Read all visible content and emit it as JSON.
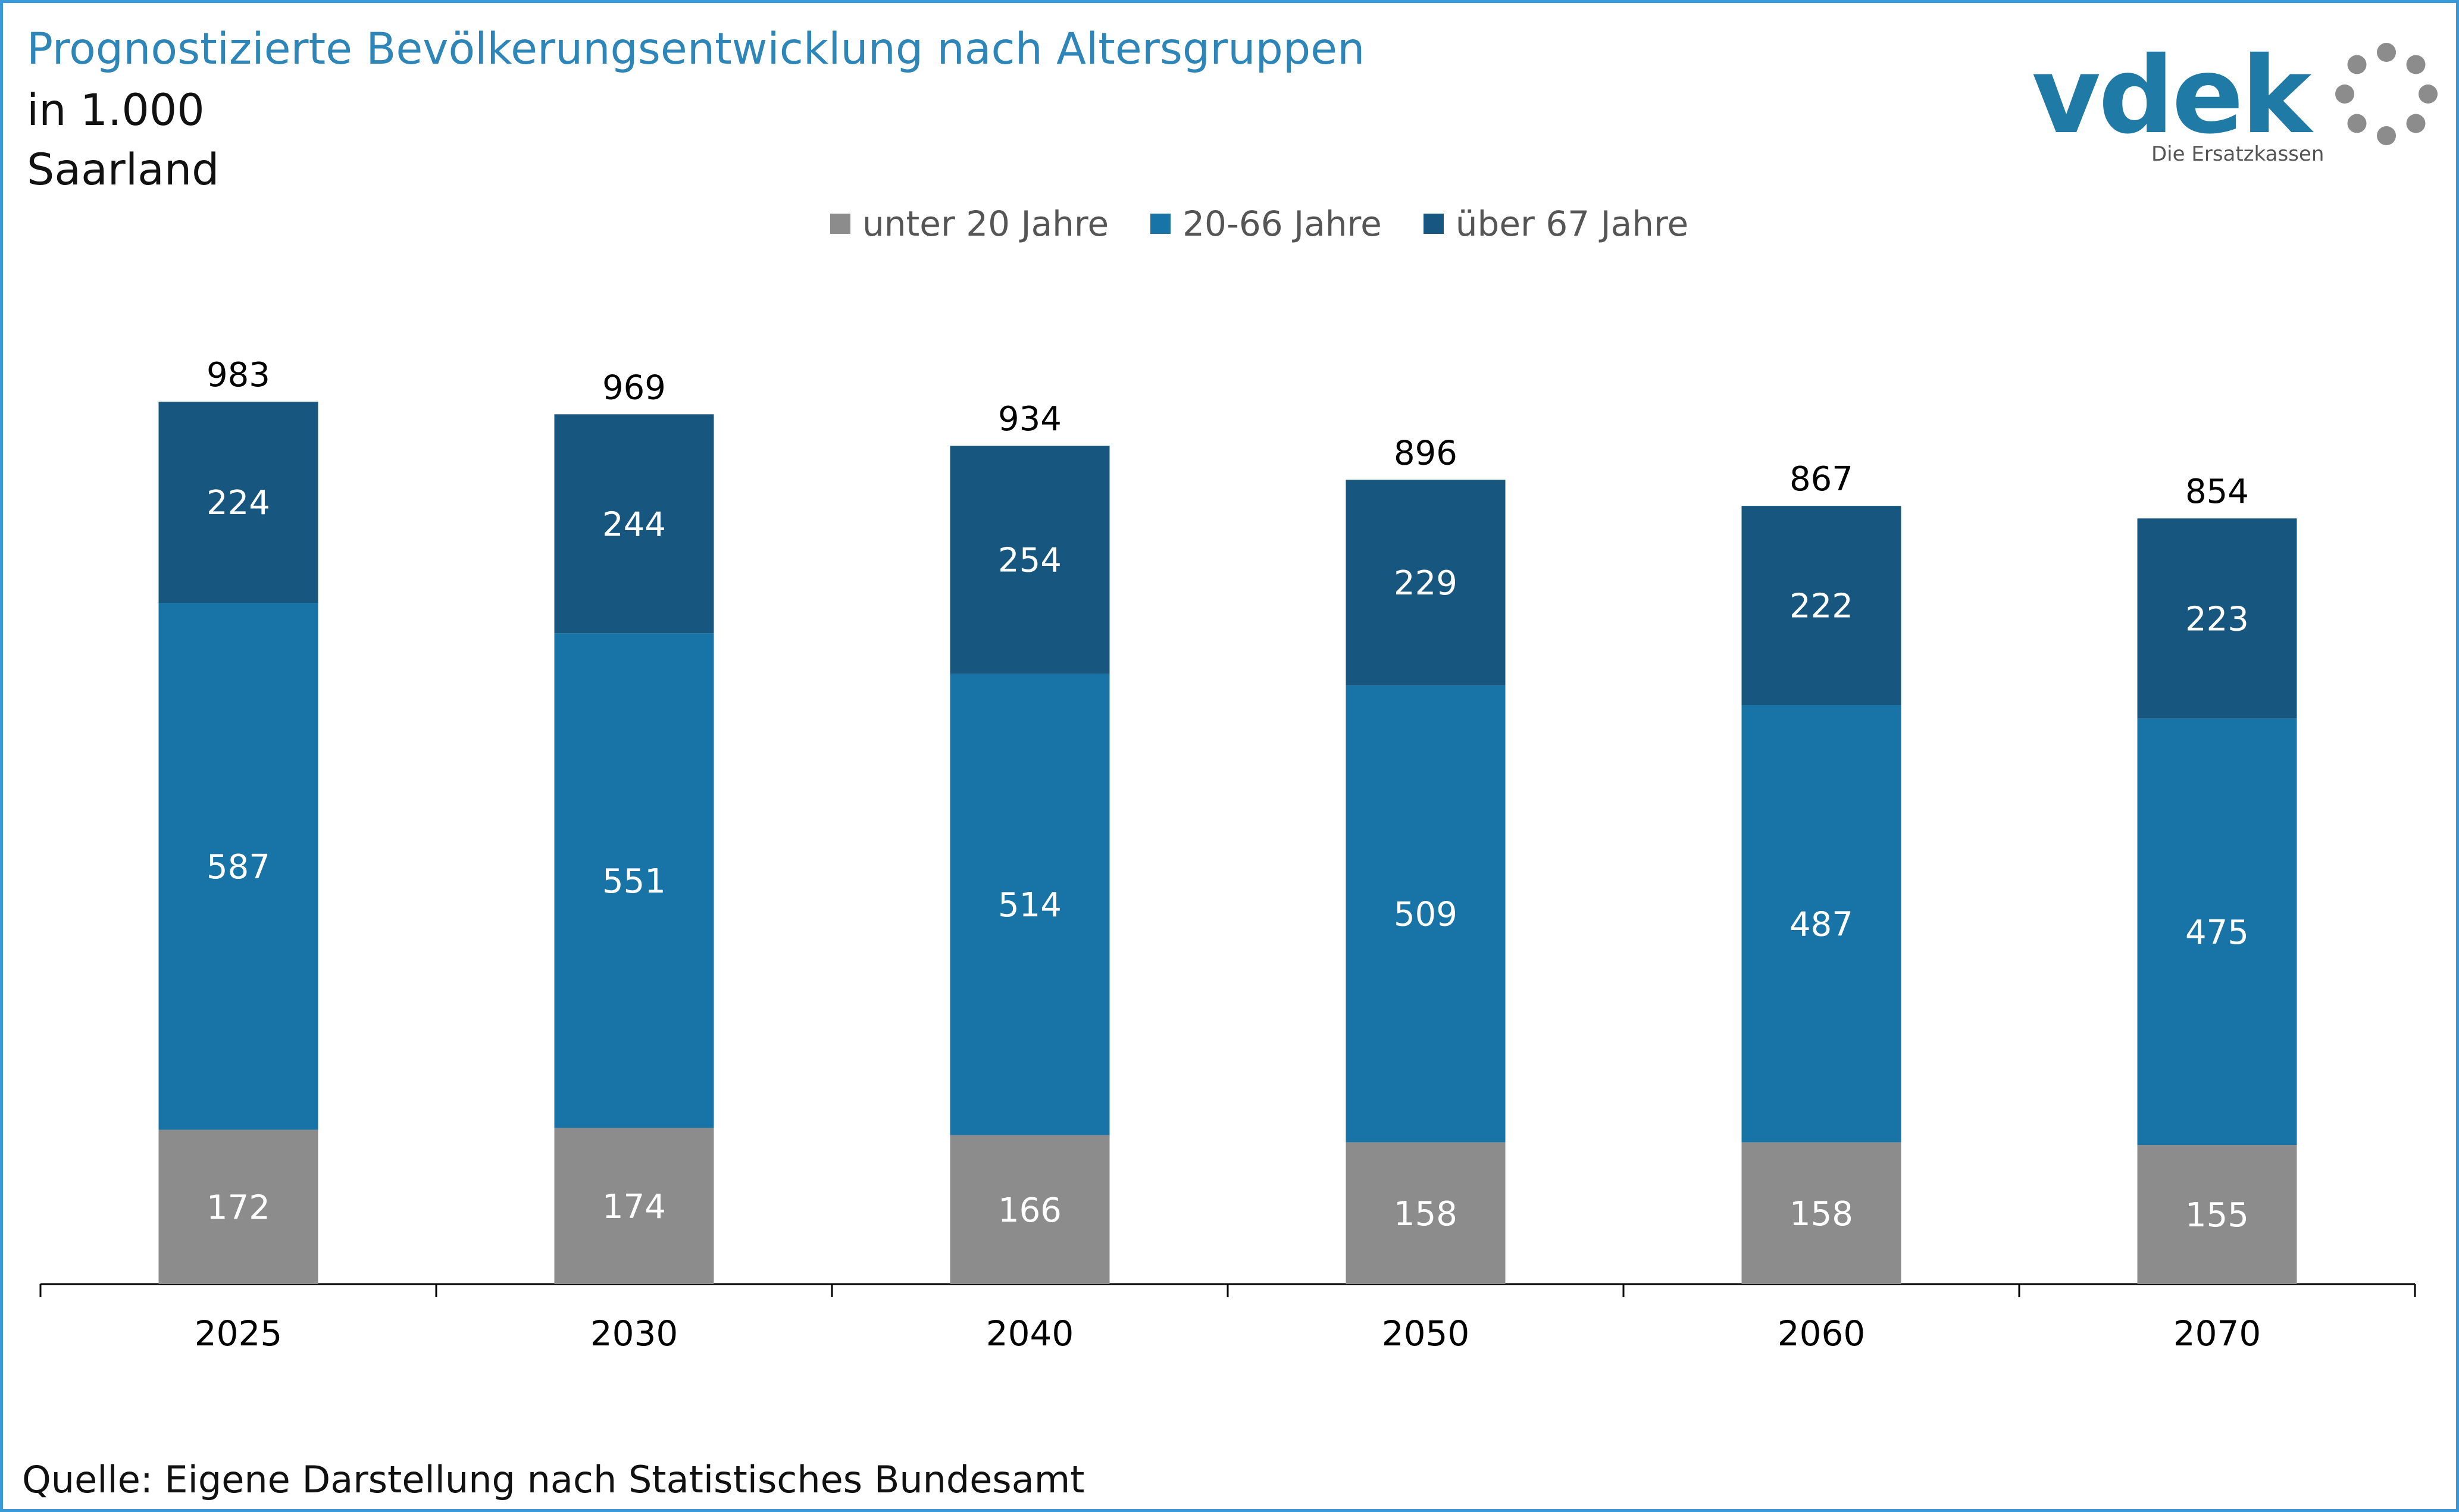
{
  "header": {
    "title": "Prognostizierte Bevölkerungsentwicklung nach Altersgruppen",
    "subtitle_unit": "in 1.000",
    "subtitle_region": "Saarland"
  },
  "logo": {
    "wordmark": "vdek",
    "tagline": "Die Ersatzkassen",
    "colors": {
      "wordmark": "#1f7aa6",
      "ring": "#8c8c8c",
      "tagline": "#555555"
    }
  },
  "footer": {
    "source": "Quelle: Eigene Darstellung nach Statistisches Bundesamt"
  },
  "colors": {
    "title": "#2e86b8",
    "frame": "#3a9ad9"
  },
  "chart_data": {
    "type": "bar",
    "stacked": true,
    "categories": [
      "2025",
      "2030",
      "2040",
      "2050",
      "2060",
      "2070"
    ],
    "series": [
      {
        "name": "unter 20 Jahre",
        "color": "#8c8c8c",
        "values": [
          172,
          174,
          166,
          158,
          158,
          155
        ]
      },
      {
        "name": "20-66 Jahre",
        "color": "#1874a6",
        "values": [
          587,
          551,
          514,
          509,
          487,
          475
        ]
      },
      {
        "name": "über 67 Jahre",
        "color": "#17577f",
        "values": [
          224,
          244,
          254,
          229,
          222,
          223
        ]
      }
    ],
    "totals": [
      983,
      969,
      934,
      896,
      867,
      854
    ],
    "ylim": [
      0,
      1000
    ],
    "grid": false,
    "legend_position": "top-center",
    "xlabel": "",
    "ylabel": ""
  }
}
